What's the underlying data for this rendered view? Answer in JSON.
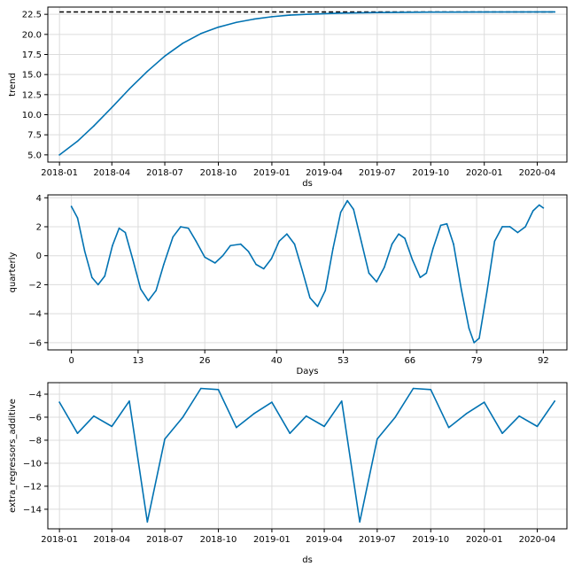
{
  "chart_data": [
    {
      "type": "line",
      "xlabel": "ds",
      "ylabel": "trend",
      "x_type": "date",
      "xlim": [
        "2017-12-12",
        "2020-05-22"
      ],
      "ylim": [
        4.1,
        23.4
      ],
      "grid": true,
      "xticks": [
        {
          "value": "2018-01-01",
          "label": "2018-01"
        },
        {
          "value": "2018-04-01",
          "label": "2018-04"
        },
        {
          "value": "2018-07-01",
          "label": "2018-07"
        },
        {
          "value": "2018-10-01",
          "label": "2018-10"
        },
        {
          "value": "2019-01-01",
          "label": "2019-01"
        },
        {
          "value": "2019-04-01",
          "label": "2019-04"
        },
        {
          "value": "2019-07-01",
          "label": "2019-07"
        },
        {
          "value": "2019-10-01",
          "label": "2019-10"
        },
        {
          "value": "2020-01-01",
          "label": "2020-01"
        },
        {
          "value": "2020-04-01",
          "label": "2020-04"
        }
      ],
      "yticks": [
        {
          "value": 5.0,
          "label": "5.0"
        },
        {
          "value": 7.5,
          "label": "7.5"
        },
        {
          "value": 10.0,
          "label": "10.0"
        },
        {
          "value": 12.5,
          "label": "12.5"
        },
        {
          "value": 15.0,
          "label": "15.0"
        },
        {
          "value": 17.5,
          "label": "17.5"
        },
        {
          "value": 20.0,
          "label": "20.0"
        },
        {
          "value": 22.5,
          "label": "22.5"
        }
      ],
      "reference_line": {
        "y": 22.8,
        "x_start": "2018-01-01",
        "x_end": "2020-05-01",
        "style": "dashed",
        "color": "#000000"
      },
      "series": [
        {
          "color": "#0072B2",
          "points": [
            {
              "x": "2018-01-01",
              "y": 5.0
            },
            {
              "x": "2018-02-01",
              "y": 6.7
            },
            {
              "x": "2018-03-01",
              "y": 8.6
            },
            {
              "x": "2018-04-01",
              "y": 10.9
            },
            {
              "x": "2018-05-01",
              "y": 13.2
            },
            {
              "x": "2018-06-01",
              "y": 15.4
            },
            {
              "x": "2018-07-01",
              "y": 17.3
            },
            {
              "x": "2018-08-01",
              "y": 18.9
            },
            {
              "x": "2018-09-01",
              "y": 20.1
            },
            {
              "x": "2018-10-01",
              "y": 20.9
            },
            {
              "x": "2018-11-01",
              "y": 21.5
            },
            {
              "x": "2018-12-01",
              "y": 21.9
            },
            {
              "x": "2019-01-01",
              "y": 22.2
            },
            {
              "x": "2019-02-01",
              "y": 22.4
            },
            {
              "x": "2019-03-01",
              "y": 22.5
            },
            {
              "x": "2019-05-01",
              "y": 22.65
            },
            {
              "x": "2019-07-01",
              "y": 22.72
            },
            {
              "x": "2019-10-01",
              "y": 22.77
            },
            {
              "x": "2020-01-01",
              "y": 22.79
            },
            {
              "x": "2020-05-01",
              "y": 22.8
            }
          ]
        }
      ]
    },
    {
      "type": "line",
      "xlabel": "Days",
      "ylabel": "quarterly",
      "x_type": "number",
      "xlim": [
        -4.6,
        96.6
      ],
      "ylim": [
        -6.5,
        4.2
      ],
      "grid": true,
      "xticks": [
        {
          "value": 0,
          "label": "0"
        },
        {
          "value": 13,
          "label": "13"
        },
        {
          "value": 26,
          "label": "26"
        },
        {
          "value": 40,
          "label": "40"
        },
        {
          "value": 53,
          "label": "53"
        },
        {
          "value": 66,
          "label": "66"
        },
        {
          "value": 79,
          "label": "79"
        },
        {
          "value": 92,
          "label": "92"
        }
      ],
      "yticks": [
        {
          "value": -6,
          "label": "−6"
        },
        {
          "value": -4,
          "label": "−4"
        },
        {
          "value": -2,
          "label": "−2"
        },
        {
          "value": 0,
          "label": "0"
        },
        {
          "value": 2,
          "label": "2"
        },
        {
          "value": 4,
          "label": "4"
        }
      ],
      "series": [
        {
          "color": "#0072B2",
          "points": [
            {
              "x": 0,
              "y": 3.4
            },
            {
              "x": 1.2,
              "y": 2.6
            },
            {
              "x": 2.6,
              "y": 0.3
            },
            {
              "x": 4.0,
              "y": -1.5
            },
            {
              "x": 5.2,
              "y": -2.0
            },
            {
              "x": 6.5,
              "y": -1.4
            },
            {
              "x": 8.0,
              "y": 0.7
            },
            {
              "x": 9.3,
              "y": 1.9
            },
            {
              "x": 10.5,
              "y": 1.6
            },
            {
              "x": 12.0,
              "y": -0.3
            },
            {
              "x": 13.5,
              "y": -2.3
            },
            {
              "x": 15.0,
              "y": -3.1
            },
            {
              "x": 16.5,
              "y": -2.4
            },
            {
              "x": 18.0,
              "y": -0.6
            },
            {
              "x": 19.8,
              "y": 1.3
            },
            {
              "x": 21.3,
              "y": 2.0
            },
            {
              "x": 22.8,
              "y": 1.9
            },
            {
              "x": 24.3,
              "y": 1.0
            },
            {
              "x": 26.0,
              "y": -0.1
            },
            {
              "x": 28.0,
              "y": -0.5
            },
            {
              "x": 29.5,
              "y": 0.0
            },
            {
              "x": 31.0,
              "y": 0.7
            },
            {
              "x": 33.0,
              "y": 0.8
            },
            {
              "x": 34.5,
              "y": 0.3
            },
            {
              "x": 36.0,
              "y": -0.6
            },
            {
              "x": 37.5,
              "y": -0.9
            },
            {
              "x": 39.0,
              "y": -0.2
            },
            {
              "x": 40.5,
              "y": 1.0
            },
            {
              "x": 42.0,
              "y": 1.5
            },
            {
              "x": 43.5,
              "y": 0.8
            },
            {
              "x": 45.0,
              "y": -1.0
            },
            {
              "x": 46.5,
              "y": -2.9
            },
            {
              "x": 48.0,
              "y": -3.5
            },
            {
              "x": 49.5,
              "y": -2.4
            },
            {
              "x": 51.0,
              "y": 0.5
            },
            {
              "x": 52.5,
              "y": 3.0
            },
            {
              "x": 53.8,
              "y": 3.8
            },
            {
              "x": 55.0,
              "y": 3.2
            },
            {
              "x": 56.5,
              "y": 1.0
            },
            {
              "x": 58.0,
              "y": -1.2
            },
            {
              "x": 59.5,
              "y": -1.8
            },
            {
              "x": 61.0,
              "y": -0.8
            },
            {
              "x": 62.5,
              "y": 0.8
            },
            {
              "x": 63.8,
              "y": 1.5
            },
            {
              "x": 65.0,
              "y": 1.2
            },
            {
              "x": 66.5,
              "y": -0.3
            },
            {
              "x": 68.0,
              "y": -1.5
            },
            {
              "x": 69.2,
              "y": -1.2
            },
            {
              "x": 70.5,
              "y": 0.5
            },
            {
              "x": 72.0,
              "y": 2.1
            },
            {
              "x": 73.2,
              "y": 2.2
            },
            {
              "x": 74.5,
              "y": 0.8
            },
            {
              "x": 76.0,
              "y": -2.3
            },
            {
              "x": 77.5,
              "y": -5.0
            },
            {
              "x": 78.5,
              "y": -6.0
            },
            {
              "x": 79.5,
              "y": -5.7
            },
            {
              "x": 81.0,
              "y": -2.5
            },
            {
              "x": 82.5,
              "y": 1.0
            },
            {
              "x": 84.0,
              "y": 2.0
            },
            {
              "x": 85.5,
              "y": 2.0
            },
            {
              "x": 87.0,
              "y": 1.6
            },
            {
              "x": 88.5,
              "y": 2.0
            },
            {
              "x": 90.0,
              "y": 3.1
            },
            {
              "x": 91.2,
              "y": 3.5
            },
            {
              "x": 92.0,
              "y": 3.3
            }
          ]
        }
      ]
    },
    {
      "type": "line",
      "xlabel": "ds",
      "ylabel": "extra_regressors_additive",
      "x_type": "date",
      "xlim": [
        "2017-12-12",
        "2020-05-22"
      ],
      "ylim": [
        -15.7,
        -3.0
      ],
      "grid": true,
      "xticks": [
        {
          "value": "2018-01-01",
          "label": "2018-01"
        },
        {
          "value": "2018-04-01",
          "label": "2018-04"
        },
        {
          "value": "2018-07-01",
          "label": "2018-07"
        },
        {
          "value": "2018-10-01",
          "label": "2018-10"
        },
        {
          "value": "2019-01-01",
          "label": "2019-01"
        },
        {
          "value": "2019-04-01",
          "label": "2019-04"
        },
        {
          "value": "2019-07-01",
          "label": "2019-07"
        },
        {
          "value": "2019-10-01",
          "label": "2019-10"
        },
        {
          "value": "2020-01-01",
          "label": "2020-01"
        },
        {
          "value": "2020-04-01",
          "label": "2020-04"
        }
      ],
      "yticks": [
        {
          "value": -14,
          "label": "−14"
        },
        {
          "value": -12,
          "label": "−12"
        },
        {
          "value": -10,
          "label": "−10"
        },
        {
          "value": -8,
          "label": "−8"
        },
        {
          "value": -6,
          "label": "−6"
        },
        {
          "value": -4,
          "label": "−4"
        }
      ],
      "series": [
        {
          "color": "#0072B2",
          "points": [
            {
              "x": "2018-01-01",
              "y": -4.7
            },
            {
              "x": "2018-02-01",
              "y": -7.4
            },
            {
              "x": "2018-03-01",
              "y": -5.9
            },
            {
              "x": "2018-04-01",
              "y": -6.8
            },
            {
              "x": "2018-05-01",
              "y": -4.6
            },
            {
              "x": "2018-06-01",
              "y": -15.1
            },
            {
              "x": "2018-07-01",
              "y": -7.9
            },
            {
              "x": "2018-08-01",
              "y": -6.0
            },
            {
              "x": "2018-09-01",
              "y": -3.5
            },
            {
              "x": "2018-10-01",
              "y": -3.6
            },
            {
              "x": "2018-11-01",
              "y": -6.9
            },
            {
              "x": "2018-12-01",
              "y": -5.7
            },
            {
              "x": "2019-01-01",
              "y": -4.7
            },
            {
              "x": "2019-02-01",
              "y": -7.4
            },
            {
              "x": "2019-03-01",
              "y": -5.9
            },
            {
              "x": "2019-04-01",
              "y": -6.8
            },
            {
              "x": "2019-05-01",
              "y": -4.6
            },
            {
              "x": "2019-06-01",
              "y": -15.1
            },
            {
              "x": "2019-07-01",
              "y": -7.9
            },
            {
              "x": "2019-08-01",
              "y": -6.0
            },
            {
              "x": "2019-09-01",
              "y": -3.5
            },
            {
              "x": "2019-10-01",
              "y": -3.6
            },
            {
              "x": "2019-11-01",
              "y": -6.9
            },
            {
              "x": "2019-12-01",
              "y": -5.7
            },
            {
              "x": "2020-01-01",
              "y": -4.7
            },
            {
              "x": "2020-02-01",
              "y": -7.4
            },
            {
              "x": "2020-03-01",
              "y": -5.9
            },
            {
              "x": "2020-04-01",
              "y": -6.8
            },
            {
              "x": "2020-05-01",
              "y": -4.6
            }
          ]
        }
      ]
    }
  ]
}
